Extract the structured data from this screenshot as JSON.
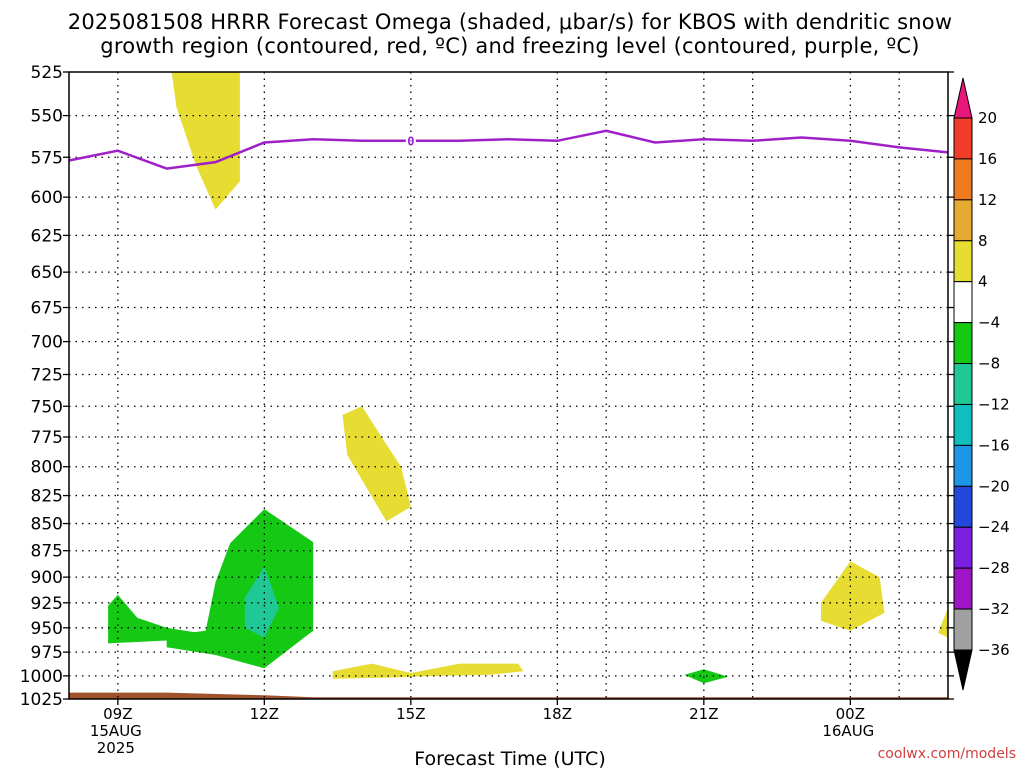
{
  "title": {
    "line1": "2025081508 HRRR Forecast Omega (shaded, μbar/s) for KBOS with dendritic snow",
    "line2": "growth region (contoured, red, ºC) and freezing level (contoured, purple, ºC)"
  },
  "xlabel": "Forecast Time (UTC)",
  "credit": "coolwx.com/models",
  "chart_data": {
    "type": "heatmap",
    "title": "2025081508 HRRR Forecast Omega (shaded, μbar/s) for KBOS with dendritic snow growth region (contoured, red, ºC) and freezing level (contoured, purple, ºC)",
    "xlabel": "Forecast Time (UTC)",
    "ylabel": "",
    "x_range_hours_after_0800Z_15AUG": [
      0,
      18
    ],
    "y_range_hPa": [
      1025,
      525
    ],
    "y_ticks": [
      525,
      550,
      575,
      600,
      625,
      650,
      675,
      700,
      725,
      750,
      775,
      800,
      825,
      850,
      875,
      900,
      925,
      950,
      975,
      1000,
      1025
    ],
    "x_ticks": [
      {
        "h": 1,
        "label": "09Z",
        "sub": [
          "15AUG",
          "2025"
        ]
      },
      {
        "h": 4,
        "label": "12Z",
        "sub": []
      },
      {
        "h": 7,
        "label": "15Z",
        "sub": []
      },
      {
        "h": 10,
        "label": "18Z",
        "sub": []
      },
      {
        "h": 13,
        "label": "21Z",
        "sub": []
      },
      {
        "h": 16,
        "label": "00Z",
        "sub": [
          "16AUG"
        ]
      }
    ],
    "grid": true,
    "freezing_level": {
      "label": "0",
      "color": "#a020c8",
      "points": [
        [
          0,
          577
        ],
        [
          1,
          571
        ],
        [
          2,
          582
        ],
        [
          3,
          578
        ],
        [
          4,
          566
        ],
        [
          5,
          564
        ],
        [
          6,
          565
        ],
        [
          7,
          565
        ],
        [
          8,
          565
        ],
        [
          9,
          564
        ],
        [
          10,
          565
        ],
        [
          11,
          559
        ],
        [
          12,
          566
        ],
        [
          13,
          564
        ],
        [
          14,
          565
        ],
        [
          15,
          563
        ],
        [
          16,
          565
        ],
        [
          17,
          569
        ],
        [
          18,
          572
        ]
      ]
    },
    "shaded_regions": [
      {
        "category": "4 to 8",
        "color": "#e6dc32",
        "points": [
          [
            2.1,
            525
          ],
          [
            3.5,
            525
          ],
          [
            3.5,
            550
          ],
          [
            3.5,
            590
          ],
          [
            3.0,
            608
          ],
          [
            2.6,
            580
          ],
          [
            2.2,
            545
          ]
        ]
      },
      {
        "category": "4 to 8",
        "color": "#e6dc32",
        "points": [
          [
            5.6,
            757
          ],
          [
            6.0,
            750
          ],
          [
            6.4,
            775
          ],
          [
            6.8,
            800
          ],
          [
            7.0,
            835
          ],
          [
            6.5,
            848
          ],
          [
            5.7,
            790
          ]
        ]
      },
      {
        "category": "4 to 8",
        "color": "#e6dc32",
        "points": [
          [
            5.4,
            995
          ],
          [
            6.2,
            987
          ],
          [
            7.0,
            997
          ],
          [
            8.0,
            987
          ],
          [
            9.2,
            987
          ],
          [
            9.3,
            995
          ],
          [
            8.6,
            999
          ],
          [
            7.5,
            1000
          ],
          [
            6.5,
            1002
          ],
          [
            5.4,
            1003
          ]
        ]
      },
      {
        "category": "4 to 8",
        "color": "#e6dc32",
        "points": [
          [
            15.4,
            925
          ],
          [
            16.0,
            885
          ],
          [
            16.6,
            900
          ],
          [
            16.7,
            935
          ],
          [
            16.0,
            953
          ],
          [
            15.4,
            943
          ]
        ]
      },
      {
        "category": "4 to 8",
        "color": "#e6dc32",
        "points": [
          [
            17.8,
            955
          ],
          [
            18.0,
            930
          ],
          [
            18.0,
            960
          ]
        ]
      },
      {
        "category": "-8 to -4",
        "color": "#14c814",
        "points": [
          [
            0.8,
            928
          ],
          [
            1.0,
            917
          ],
          [
            1.4,
            940
          ],
          [
            2.0,
            950
          ],
          [
            3.0,
            958
          ],
          [
            2.0,
            963
          ],
          [
            0.8,
            966
          ]
        ]
      },
      {
        "category": "-8 to -4",
        "color": "#14c814",
        "points": [
          [
            2.0,
            958
          ],
          [
            2.8,
            953
          ],
          [
            3.0,
            905
          ],
          [
            3.3,
            868
          ],
          [
            4.0,
            837
          ],
          [
            5.0,
            867
          ],
          [
            5.0,
            953
          ],
          [
            4.0,
            992
          ],
          [
            3.0,
            978
          ],
          [
            2.0,
            970
          ]
        ]
      },
      {
        "category": "-8 to -4",
        "color": "#14c814",
        "points": [
          [
            12.6,
            999
          ],
          [
            13.0,
            993
          ],
          [
            13.5,
            1001
          ],
          [
            13.0,
            1008
          ]
        ]
      },
      {
        "category": "-12 to -8",
        "color": "#20c896",
        "points": [
          [
            3.6,
            920
          ],
          [
            4.0,
            890
          ],
          [
            4.3,
            930
          ],
          [
            4.0,
            960
          ],
          [
            3.6,
            950
          ]
        ]
      }
    ],
    "terrain": {
      "color": "#a0522d",
      "points": [
        [
          0,
          1018
        ],
        [
          2,
          1018
        ],
        [
          4,
          1021
        ],
        [
          5,
          1023
        ],
        [
          18,
          1023
        ]
      ]
    },
    "colorbar": {
      "tick_labels": [
        "20",
        "16",
        "12",
        "8",
        "4",
        "−4",
        "−8",
        "−12",
        "−16",
        "−20",
        "−24",
        "−28",
        "−32",
        "−36"
      ],
      "colors": [
        "#e8157a",
        "#f03c28",
        "#f07a1e",
        "#e6aa32",
        "#e6dc32",
        "#ffffff",
        "#14c814",
        "#20c896",
        "#10bebe",
        "#1e96e6",
        "#2346dc",
        "#7a1ee0",
        "#a014c8",
        "#a0a0a0",
        "#000000"
      ]
    }
  }
}
